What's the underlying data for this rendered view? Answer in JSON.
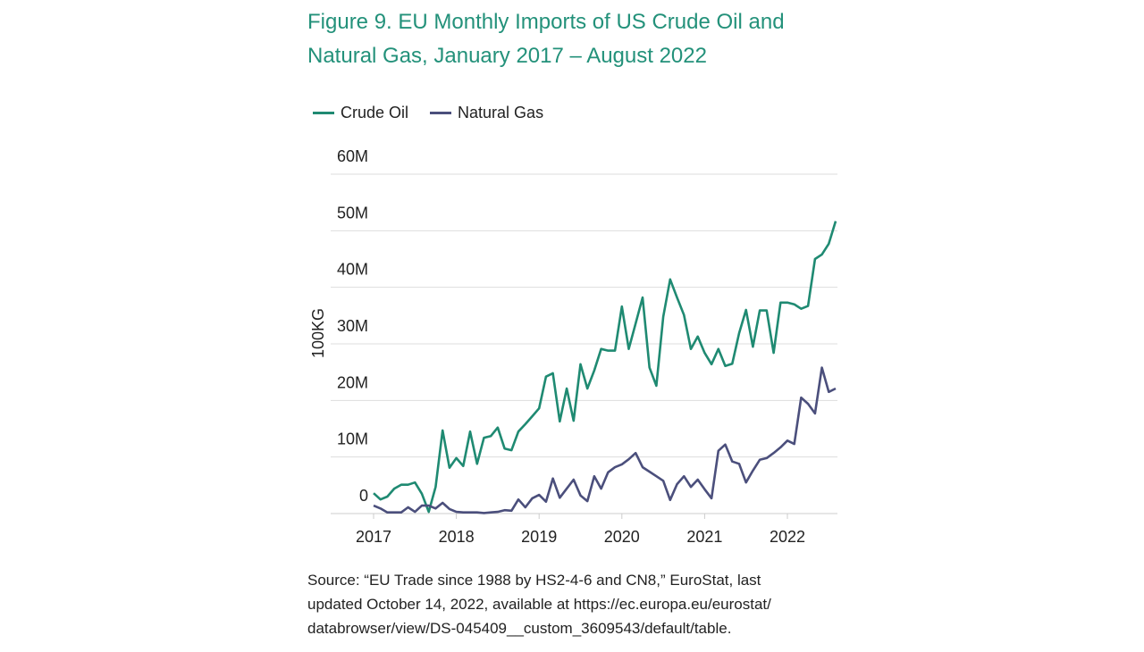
{
  "title_line1": "Figure 9. EU Monthly Imports of US Crude Oil and",
  "title_line2": "Natural Gas, January 2017 – August 2022",
  "source_lines": [
    "Source: “EU Trade since 1988 by HS2-4-6 and CN8,” EuroStat, last",
    "updated October 14, 2022, available at https://ec.europa.eu/eurostat/",
    "databrowser/view/DS-045409__custom_3609543/default/table."
  ],
  "colors": {
    "crude": "#1f8a72",
    "gas": "#4b4f7c",
    "title": "#23917a",
    "grid": "#dddddd"
  },
  "chart_data": {
    "type": "line",
    "title": "Figure 9. EU Monthly Imports of US Crude Oil and Natural Gas, January 2017 – August 2022",
    "xlabel": "",
    "ylabel": "100KG",
    "x_start": "2017-01",
    "x_end": "2022-08",
    "x_ticks": [
      "2017",
      "2018",
      "2019",
      "2020",
      "2021",
      "2022"
    ],
    "y_ticks": [
      0,
      10,
      20,
      30,
      40,
      50,
      60
    ],
    "y_tick_labels": [
      "0",
      "10M",
      "20M",
      "30M",
      "40M",
      "50M",
      "60M"
    ],
    "ylim": [
      0,
      60
    ],
    "unit": "millions of 100KG",
    "grid": true,
    "legend_position": "top-left",
    "series": [
      {
        "name": "Crude Oil",
        "values": [
          3.6,
          2.5,
          3.0,
          4.4,
          5.1,
          5.1,
          5.5,
          3.5,
          0.3,
          4.7,
          14.7,
          8.1,
          9.8,
          8.4,
          14.5,
          8.8,
          13.4,
          13.7,
          15.2,
          11.5,
          11.2,
          14.5,
          15.8,
          17.2,
          18.6,
          24.2,
          24.8,
          16.3,
          22.1,
          16.4,
          26.4,
          22.1,
          25.3,
          29.1,
          28.8,
          28.8,
          36.6,
          29.1,
          33.6,
          38.2,
          25.8,
          22.6,
          34.8,
          41.4,
          38.2,
          35.1,
          29.1,
          31.3,
          28.4,
          26.4,
          29.1,
          26.1,
          26.5,
          31.9,
          36.0,
          29.5,
          35.9,
          35.9,
          28.4,
          37.3,
          37.3,
          37.0,
          36.2,
          36.7,
          45.0,
          45.8,
          47.7,
          51.7
        ]
      },
      {
        "name": "Natural Gas",
        "values": [
          1.4,
          0.9,
          0.2,
          0.2,
          0.2,
          1.1,
          0.3,
          1.4,
          1.4,
          0.9,
          1.9,
          0.8,
          0.3,
          0.2,
          0.2,
          0.2,
          0.1,
          0.2,
          0.3,
          0.6,
          0.5,
          2.5,
          1.1,
          2.7,
          3.3,
          2.1,
          6.2,
          2.8,
          4.4,
          6.0,
          3.2,
          2.2,
          6.6,
          4.4,
          7.3,
          8.2,
          8.7,
          9.6,
          10.7,
          8.2,
          7.4,
          6.6,
          5.8,
          2.4,
          5.2,
          6.6,
          4.7,
          6.0,
          4.3,
          2.7,
          11.1,
          12.2,
          9.2,
          8.8,
          5.5,
          7.6,
          9.5,
          9.8,
          10.7,
          11.7,
          12.9,
          12.3,
          20.5,
          19.4,
          17.7,
          25.8,
          21.5,
          22.1
        ]
      }
    ]
  }
}
